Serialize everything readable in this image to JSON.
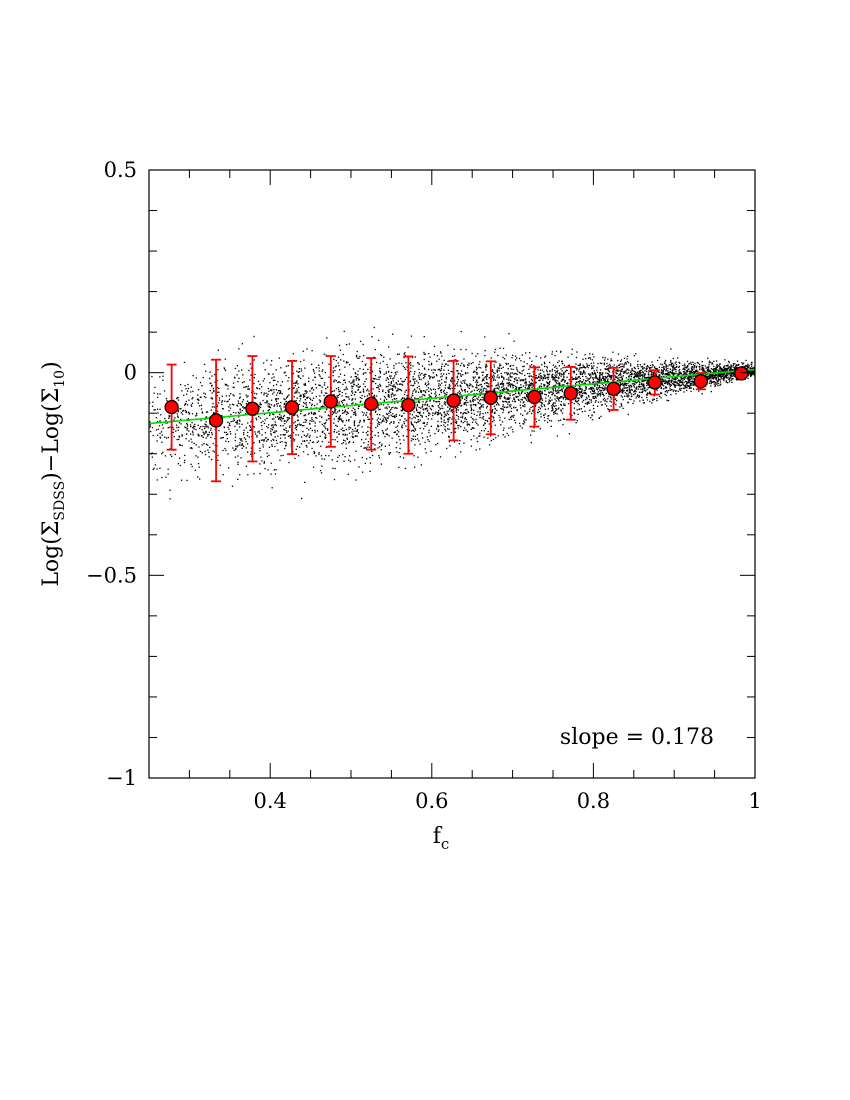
{
  "chart_data": {
    "type": "scatter",
    "xlabel": "f",
    "xlabel_sub": "c",
    "ylabel_parts": [
      "Log(Σ",
      "SDSS",
      ")−Log(Σ",
      "10",
      ")"
    ],
    "xlim": [
      0.25,
      1.0
    ],
    "ylim": [
      -1.0,
      0.5
    ],
    "xticks": [
      0.4,
      0.6,
      0.8,
      1.0
    ],
    "xtick_labels": [
      "0.4",
      "0.6",
      "0.8",
      "1"
    ],
    "yticks": [
      -1.0,
      -0.5,
      0.0,
      0.5
    ],
    "ytick_labels": [
      "−1",
      "−0.5",
      "0",
      "0.5"
    ],
    "grid": false,
    "annotation": "slope  =  0.178",
    "scatter": {
      "n_points": 6000,
      "color": "#000000",
      "spread_at_x": [
        [
          0.3,
          0.13
        ],
        [
          0.5,
          0.14
        ],
        [
          0.7,
          0.09
        ],
        [
          0.9,
          0.04
        ],
        [
          1.0,
          0.015
        ]
      ]
    },
    "binned_means": {
      "color": "#ff0000",
      "errorbar_color": "#ff0000",
      "x": [
        0.278,
        0.333,
        0.378,
        0.427,
        0.475,
        0.525,
        0.571,
        0.627,
        0.673,
        0.727,
        0.772,
        0.825,
        0.876,
        0.933,
        0.983
      ],
      "y": [
        -0.085,
        -0.118,
        -0.089,
        -0.086,
        -0.071,
        -0.077,
        -0.08,
        -0.069,
        -0.062,
        -0.06,
        -0.051,
        -0.04,
        -0.024,
        -0.021,
        -0.002
      ],
      "yerr": [
        0.105,
        0.15,
        0.13,
        0.115,
        0.112,
        0.113,
        0.12,
        0.098,
        0.09,
        0.073,
        0.065,
        0.052,
        0.03,
        0.02,
        0.01
      ]
    },
    "fit_line": {
      "color": "#00e000",
      "slope": 0.178,
      "intercept": -0.17
    }
  }
}
